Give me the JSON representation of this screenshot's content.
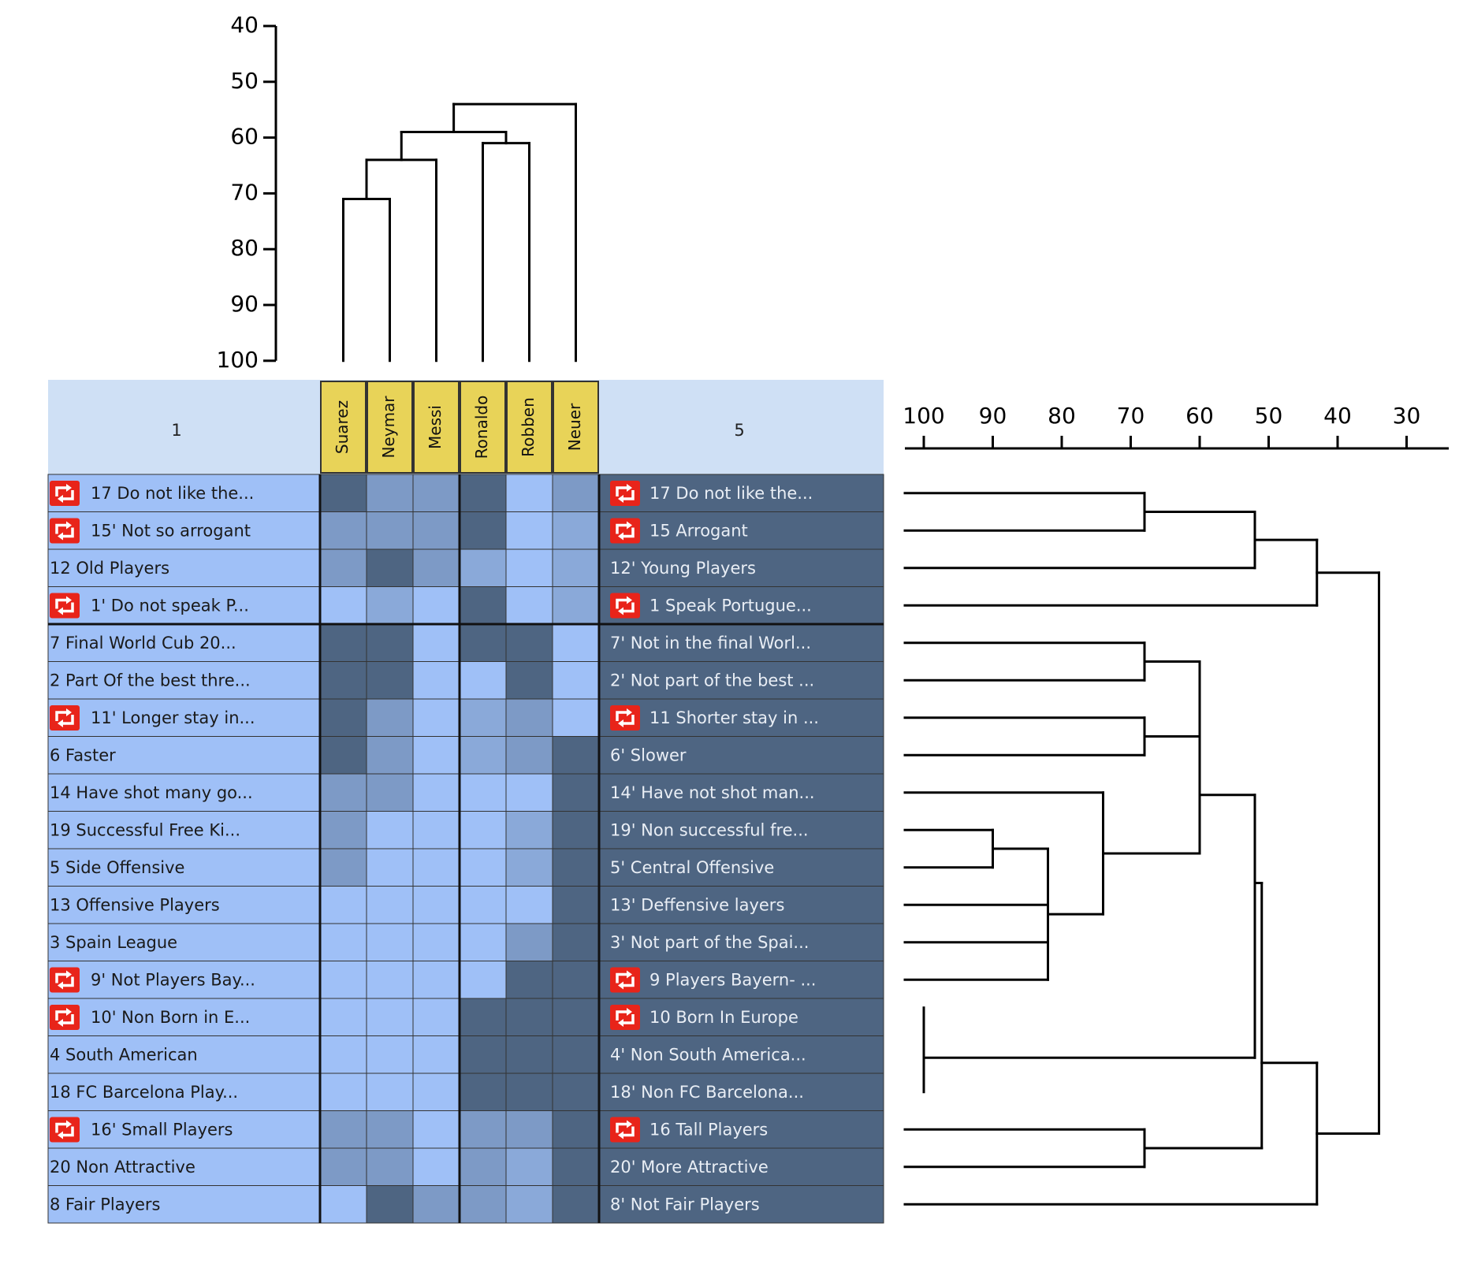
{
  "header": {
    "left_label": "1",
    "right_label": "5"
  },
  "top_axis": {
    "ticks": [
      "40",
      "50",
      "60",
      "70",
      "80",
      "90",
      "100"
    ]
  },
  "right_axis": {
    "ticks": [
      "100",
      "90",
      "80",
      "70",
      "60",
      "50",
      "40",
      "30"
    ]
  },
  "columns": [
    "Suarez",
    "Neymar",
    "Messi",
    "Ronaldo",
    "Robben",
    "Neuer"
  ],
  "rows": [
    {
      "left": "17 Do not like the...",
      "right": "17 Do not like the...",
      "reversed": true,
      "ratings": [
        5,
        3,
        3,
        5,
        1,
        3
      ]
    },
    {
      "left": "15' Not so arrogant",
      "right": "15 Arrogant",
      "reversed": true,
      "ratings": [
        3,
        3,
        3,
        5,
        1,
        2
      ]
    },
    {
      "left": "12 Old Players",
      "right": "12' Young Players",
      "reversed": false,
      "ratings": [
        3,
        5,
        3,
        2,
        1,
        2
      ]
    },
    {
      "left": "1' Do not speak P...",
      "right": "1 Speak Portugue...",
      "reversed": true,
      "ratings": [
        1,
        2,
        1,
        5,
        1,
        2
      ]
    },
    {
      "left": "7 Final World Cub 20...",
      "right": "7' Not in the final Worl...",
      "reversed": false,
      "ratings": [
        5,
        5,
        1,
        5,
        5,
        1
      ]
    },
    {
      "left": "2 Part Of the best thre...",
      "right": "2' Not part of the best ...",
      "reversed": false,
      "ratings": [
        5,
        5,
        1,
        1,
        5,
        1
      ]
    },
    {
      "left": "11' Longer stay in...",
      "right": "11 Shorter stay in ...",
      "reversed": true,
      "ratings": [
        5,
        3,
        1,
        2,
        3,
        1
      ]
    },
    {
      "left": "6 Faster",
      "right": "6' Slower",
      "reversed": false,
      "ratings": [
        5,
        3,
        1,
        2,
        3,
        5
      ]
    },
    {
      "left": "14 Have shot many go...",
      "right": "14' Have not shot man...",
      "reversed": false,
      "ratings": [
        3,
        3,
        1,
        1,
        1,
        5
      ]
    },
    {
      "left": "19 Successful Free Ki...",
      "right": "19' Non successful fre...",
      "reversed": false,
      "ratings": [
        3,
        1,
        1,
        1,
        2,
        5
      ]
    },
    {
      "left": "5 Side Offensive",
      "right": "5' Central Offensive",
      "reversed": false,
      "ratings": [
        3,
        1,
        1,
        1,
        2,
        5
      ]
    },
    {
      "left": "13 Offensive Players",
      "right": "13' Deffensive layers",
      "reversed": false,
      "ratings": [
        1,
        1,
        1,
        1,
        1,
        5
      ]
    },
    {
      "left": "3 Spain League",
      "right": "3' Not part of the Spai...",
      "reversed": false,
      "ratings": [
        1,
        1,
        1,
        1,
        3,
        5
      ]
    },
    {
      "left": "9' Not Players Bay...",
      "right": "9 Players Bayern- ...",
      "reversed": true,
      "ratings": [
        1,
        1,
        1,
        1,
        5,
        5
      ]
    },
    {
      "left": "10' Non Born in E...",
      "right": "10 Born In Europe",
      "reversed": true,
      "ratings": [
        1,
        1,
        1,
        5,
        5,
        5
      ]
    },
    {
      "left": "4 South American",
      "right": "4' Non South America...",
      "reversed": false,
      "ratings": [
        1,
        1,
        1,
        5,
        5,
        5
      ]
    },
    {
      "left": "18 FC Barcelona Play...",
      "right": "18' Non FC Barcelona...",
      "reversed": false,
      "ratings": [
        1,
        1,
        1,
        5,
        5,
        5
      ]
    },
    {
      "left": "16' Small Players",
      "right": "16 Tall Players",
      "reversed": true,
      "ratings": [
        3,
        3,
        1,
        3,
        3,
        5
      ]
    },
    {
      "left": "20 Non Attractive",
      "right": "20' More Attractive",
      "reversed": false,
      "ratings": [
        3,
        3,
        1,
        3,
        2,
        5
      ]
    },
    {
      "left": "8 Fair Players",
      "right": "8' Not Fair Players",
      "reversed": false,
      "ratings": [
        1,
        5,
        3,
        3,
        2,
        5
      ]
    }
  ],
  "top_dendrogram": {
    "merges": [
      {
        "a": "Suarez",
        "b": "Neymar",
        "level": 71
      },
      {
        "a": "Suarez-Neymar",
        "b": "Messi",
        "level": 64
      },
      {
        "a": "Ronaldo",
        "b": "Robben",
        "level": 61
      },
      {
        "a": "Suarez-Neymar-Messi",
        "b": "Ronaldo-Robben",
        "level": 59
      },
      {
        "a": "five players",
        "b": "Neuer",
        "level": 54
      }
    ]
  },
  "right_dendrogram": {
    "merges": [
      {
        "rows": [
          "17",
          "15"
        ],
        "level": 68
      },
      {
        "rows": [
          "17-15",
          "12"
        ],
        "level": 52
      },
      {
        "rows": [
          "17-15-12",
          "1"
        ],
        "level": 43
      },
      {
        "rows": [
          "7",
          "2"
        ],
        "level": 68
      },
      {
        "rows": [
          "11",
          "6"
        ],
        "level": 68
      },
      {
        "rows": [
          "19",
          "5"
        ],
        "level": 90
      },
      {
        "rows": [
          "19-5",
          "13",
          "3",
          "9"
        ],
        "level": 82
      },
      {
        "rows": [
          "14",
          "19-5-13-3-9"
        ],
        "level": 74
      },
      {
        "rows": [
          "7-2",
          "11-6"
        ],
        "level": 60
      },
      {
        "rows": [
          "7-2-11-6",
          "14-19-5-13-3-9"
        ],
        "level": 60
      },
      {
        "rows": [
          "10",
          "4",
          "18"
        ],
        "level": 100
      },
      {
        "rows": [
          "7...9",
          "10-4-18"
        ],
        "level": 52
      },
      {
        "rows": [
          "16",
          "20"
        ],
        "level": 68
      },
      {
        "rows": [
          "16-20",
          "8"
        ],
        "level": 43
      },
      {
        "rows": [
          "7...18",
          "16-20-8"
        ],
        "level": 51
      },
      {
        "rows": [
          "17-15-12-1",
          "7...8"
        ],
        "level": 34
      }
    ]
  },
  "colors": {
    "rating_5": "#4e6582",
    "rating_3": "#7d9ac6",
    "rating_2": "#8aa9d9",
    "rating_1": "#9fc0f7",
    "left_row_bg": "#9fc0f7",
    "right_row_bg": "#4e6582",
    "header_bg": "#cfe0f5",
    "column_header_bg": "#e8d358",
    "icon_red": "#e8241a",
    "line": "#000000"
  },
  "icons": {
    "reverse": "reverse-arrows-icon"
  }
}
